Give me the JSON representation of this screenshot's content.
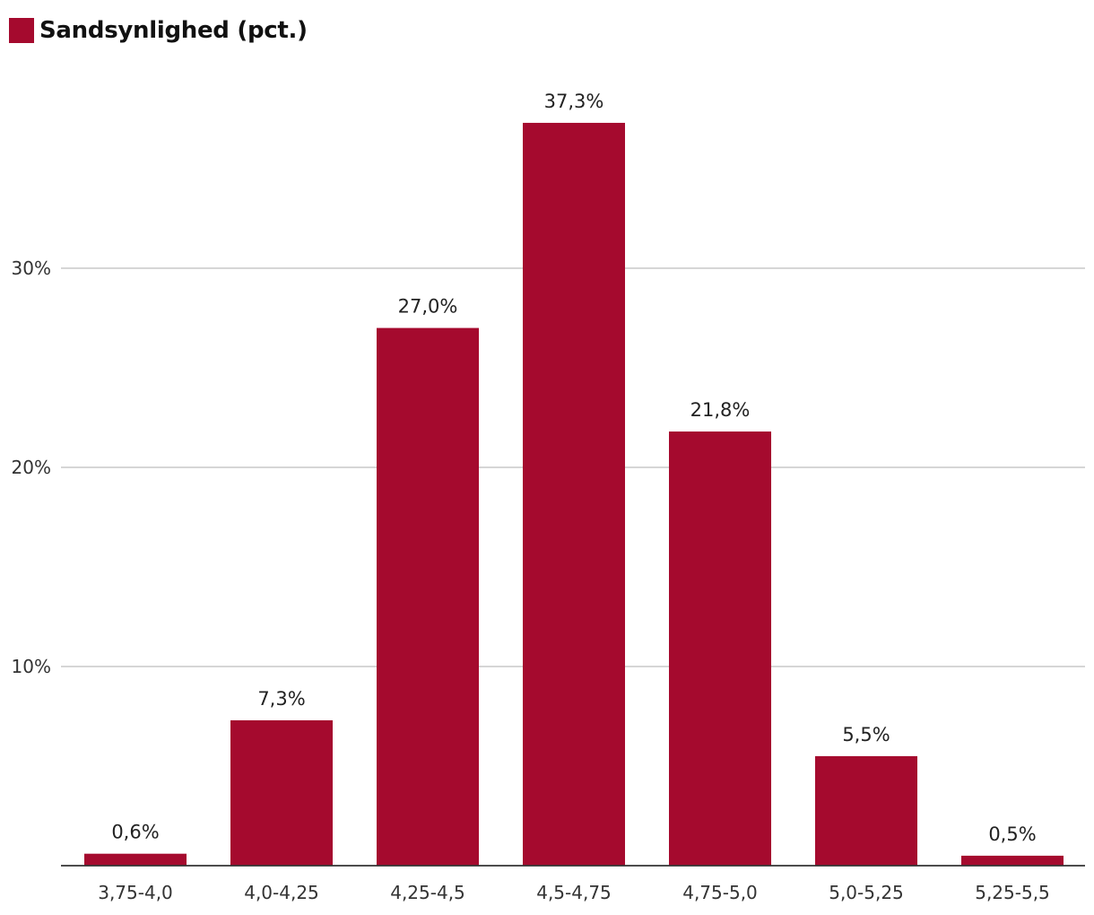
{
  "chart_data": {
    "type": "bar",
    "title": "",
    "xlabel": "",
    "ylabel": "",
    "legend": {
      "label": "Sandsynlighed (pct.)",
      "placement": "top-left"
    },
    "series": [
      {
        "name": "Sandsynlighed (pct.)",
        "color": "#a50a2e",
        "values": [
          0.6,
          7.3,
          27.0,
          37.3,
          21.8,
          5.5,
          0.5
        ],
        "data_labels": [
          "0,6%",
          "7,3%",
          "27,0%",
          "37,3%",
          "21,8%",
          "5,5%",
          "0,5%"
        ]
      }
    ],
    "categories": [
      "3,75-4,0",
      "4,0-4,25",
      "4,25-4,5",
      "4,5-4,75",
      "4,75-5,0",
      "5,0-5,25",
      "5,25-5,5"
    ],
    "ylim": [
      0,
      40
    ],
    "yticks": [
      10,
      20,
      30
    ],
    "ytick_labels": [
      "10%",
      "20%",
      "30%"
    ],
    "grid": true
  }
}
